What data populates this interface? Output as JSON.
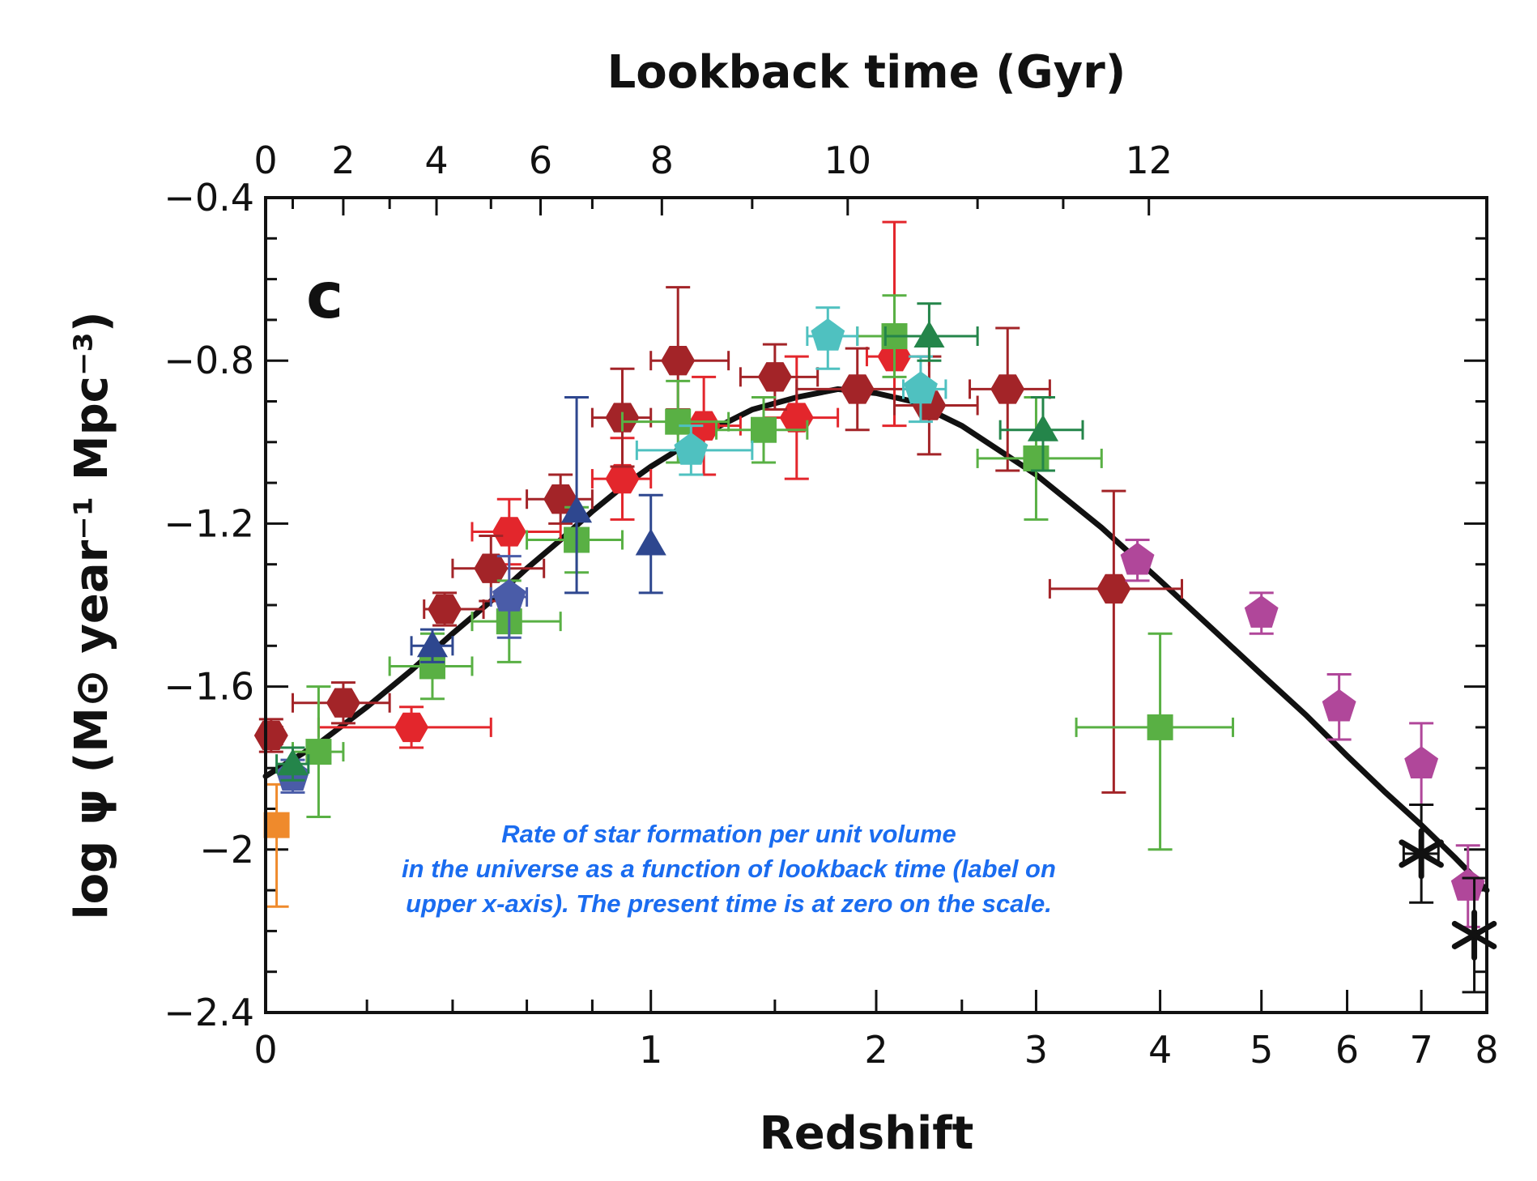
{
  "chart_data": {
    "type": "scatter",
    "panel_label": "c",
    "xlabel": "Redshift",
    "ylabel": "log ψ (M⊙ year⁻¹ Mpc⁻³)",
    "top_xlabel": "Lookback time (Gyr)",
    "x_scale": "log(1+z)",
    "xlim": [
      0,
      8
    ],
    "ylim": [
      -2.4,
      -0.4
    ],
    "x_ticks": [
      "0",
      "1",
      "2",
      "3",
      "4",
      "5",
      "6",
      "7",
      "8"
    ],
    "y_ticks": [
      "−0.4",
      "−0.8",
      "−1.2",
      "−1.6",
      "−2",
      "−2.4"
    ],
    "top_x_ticks": [
      {
        "label": "0",
        "z": 0
      },
      {
        "label": "2",
        "z": 0.15
      },
      {
        "label": "4",
        "z": 0.36
      },
      {
        "label": "6",
        "z": 0.64
      },
      {
        "label": "8",
        "z": 1.04
      },
      {
        "label": "10",
        "z": 1.85
      },
      {
        "label": "12",
        "z": 3.9
      }
    ],
    "annotation": [
      "Rate of star formation per unit volume",
      "in the universe as a function of lookback time (label on",
      "upper x-axis).  The present time is at zero on the scale."
    ],
    "fit_curve": {
      "color": "#111111",
      "points": [
        [
          0,
          -1.82
        ],
        [
          0.1,
          -1.74
        ],
        [
          0.2,
          -1.65
        ],
        [
          0.3,
          -1.56
        ],
        [
          0.4,
          -1.47
        ],
        [
          0.5,
          -1.39
        ],
        [
          0.6,
          -1.31
        ],
        [
          0.7,
          -1.24
        ],
        [
          0.8,
          -1.17
        ],
        [
          0.9,
          -1.11
        ],
        [
          1.0,
          -1.06
        ],
        [
          1.2,
          -0.98
        ],
        [
          1.4,
          -0.92
        ],
        [
          1.6,
          -0.89
        ],
        [
          1.8,
          -0.87
        ],
        [
          2.0,
          -0.88
        ],
        [
          2.2,
          -0.9
        ],
        [
          2.5,
          -0.96
        ],
        [
          3.0,
          -1.08
        ],
        [
          3.5,
          -1.21
        ],
        [
          4.0,
          -1.34
        ],
        [
          4.5,
          -1.46
        ],
        [
          5.0,
          -1.57
        ],
        [
          5.5,
          -1.67
        ],
        [
          6.0,
          -1.77
        ],
        [
          6.5,
          -1.86
        ],
        [
          7.0,
          -1.94
        ],
        [
          7.5,
          -2.02
        ],
        [
          8.0,
          -2.1
        ]
      ]
    },
    "series": [
      {
        "marker": "hexagon",
        "color": "#e3262c",
        "points": [
          {
            "z": 0.3,
            "y": -1.7,
            "xerr": [
              0.2,
              0.2
            ],
            "yerr": [
              0.05,
              0.05
            ]
          },
          {
            "z": 0.55,
            "y": -1.22,
            "xerr": [
              0.1,
              0.15
            ],
            "yerr": [
              0.08,
              0.08
            ]
          },
          {
            "z": 0.9,
            "y": -1.09,
            "xerr": [
              0.1,
              0.1
            ],
            "yerr": [
              0.1,
              0.1
            ]
          },
          {
            "z": 1.2,
            "y": -0.96,
            "xerr": [
              0.1,
              0.15
            ],
            "yerr": [
              0.12,
              0.12
            ]
          },
          {
            "z": 1.6,
            "y": -0.94,
            "xerr": [
              0.15,
              0.2
            ],
            "yerr": [
              0.15,
              0.15
            ]
          },
          {
            "z": 2.1,
            "y": -0.79,
            "xerr": [
              0.15,
              0.2
            ],
            "yerr": [
              0.17,
              0.33
            ]
          }
        ]
      },
      {
        "marker": "hexagon",
        "color": "#a32428",
        "points": [
          {
            "z": 0.01,
            "y": -1.72,
            "xerr": [
              0.01,
              0.02
            ],
            "yerr": [
              0.04,
              0.04
            ]
          },
          {
            "z": 0.15,
            "y": -1.64,
            "xerr": [
              0.1,
              0.1
            ],
            "yerr": [
              0.05,
              0.05
            ]
          },
          {
            "z": 0.38,
            "y": -1.41,
            "xerr": [
              0.05,
              0.1
            ],
            "yerr": [
              0.04,
              0.04
            ]
          },
          {
            "z": 0.5,
            "y": -1.31,
            "xerr": [
              0.1,
              0.15
            ],
            "yerr": [
              0.08,
              0.08
            ]
          },
          {
            "z": 0.7,
            "y": -1.14,
            "xerr": [
              0.1,
              0.1
            ],
            "yerr": [
              0.06,
              0.06
            ]
          },
          {
            "z": 0.9,
            "y": -0.94,
            "xerr": [
              0.1,
              0.1
            ],
            "yerr": [
              0.12,
              0.12
            ]
          },
          {
            "z": 1.1,
            "y": -0.8,
            "xerr": [
              0.1,
              0.2
            ],
            "yerr": [
              0.12,
              0.18
            ]
          },
          {
            "z": 1.5,
            "y": -0.84,
            "xerr": [
              0.15,
              0.2
            ],
            "yerr": [
              0.08,
              0.08
            ]
          },
          {
            "z": 1.9,
            "y": -0.87,
            "xerr": [
              0.3,
              0.4
            ],
            "yerr": [
              0.1,
              0.1
            ]
          },
          {
            "z": 2.3,
            "y": -0.91,
            "xerr": [
              0.2,
              0.3
            ],
            "yerr": [
              0.12,
              0.12
            ]
          },
          {
            "z": 2.8,
            "y": -0.87,
            "xerr": [
              0.25,
              0.3
            ],
            "yerr": [
              0.2,
              0.15
            ]
          },
          {
            "z": 3.6,
            "y": -1.36,
            "xerr": [
              0.5,
              0.6
            ],
            "yerr": [
              0.5,
              0.24
            ]
          }
        ]
      },
      {
        "marker": "square",
        "color": "#59b044",
        "points": [
          {
            "z": 0.1,
            "y": -1.76,
            "xerr": [
              0.05,
              0.05
            ],
            "yerr": [
              0.16,
              0.16
            ]
          },
          {
            "z": 0.35,
            "y": -1.55,
            "xerr": [
              0.1,
              0.1
            ],
            "yerr": [
              0.08,
              0.08
            ]
          },
          {
            "z": 0.55,
            "y": -1.44,
            "xerr": [
              0.1,
              0.15
            ],
            "yerr": [
              0.1,
              0.1
            ]
          },
          {
            "z": 0.75,
            "y": -1.24,
            "xerr": [
              0.15,
              0.15
            ],
            "yerr": [
              0.08,
              0.08
            ]
          },
          {
            "z": 1.1,
            "y": -0.95,
            "xerr": [
              0.2,
              0.2
            ],
            "yerr": [
              0.1,
              0.1
            ]
          },
          {
            "z": 1.45,
            "y": -0.97,
            "xerr": [
              0.2,
              0.2
            ],
            "yerr": [
              0.08,
              0.08
            ]
          },
          {
            "z": 2.1,
            "y": -0.74,
            "xerr": [
              0.2,
              0.2
            ],
            "yerr": [
              0.1,
              0.1
            ]
          },
          {
            "z": 3.0,
            "y": -1.04,
            "xerr": [
              0.4,
              0.5
            ],
            "yerr": [
              0.15,
              0.15
            ]
          },
          {
            "z": 4.0,
            "y": -1.7,
            "xerr": [
              0.7,
              0.7
            ],
            "yerr": [
              0.3,
              0.23
            ]
          }
        ]
      },
      {
        "marker": "square",
        "color": "#ef8a2c",
        "points": [
          {
            "z": 0.02,
            "y": -1.94,
            "xerr": [
              0,
              0
            ],
            "yerr": [
              0.2,
              0.1
            ]
          }
        ]
      },
      {
        "marker": "pentagon",
        "color": "#4fc1c0",
        "points": [
          {
            "z": 1.15,
            "y": -1.02,
            "xerr": [
              0.2,
              0.25
            ],
            "yerr": [
              0.06,
              0.06
            ]
          },
          {
            "z": 1.75,
            "y": -0.74,
            "xerr": [
              0.1,
              0.15
            ],
            "yerr": [
              0.08,
              0.07
            ]
          },
          {
            "z": 2.25,
            "y": -0.87,
            "xerr": [
              0.1,
              0.15
            ],
            "yerr": [
              0.08,
              0.08
            ]
          }
        ]
      },
      {
        "marker": "pentagon",
        "color": "#4a5ca8",
        "points": [
          {
            "z": 0.05,
            "y": -1.82,
            "xerr": [
              0.02,
              0.02
            ],
            "yerr": [
              0.04,
              0.04
            ]
          },
          {
            "z": 0.55,
            "y": -1.38,
            "xerr": [
              0.05,
              0.05
            ],
            "yerr": [
              0.1,
              0.1
            ]
          }
        ]
      },
      {
        "marker": "pentagon",
        "color": "#b0479a",
        "points": [
          {
            "z": 3.8,
            "y": -1.29,
            "xerr": [
              0,
              0
            ],
            "yerr": [
              0.05,
              0.05
            ]
          },
          {
            "z": 5.0,
            "y": -1.42,
            "xerr": [
              0,
              0
            ],
            "yerr": [
              0.05,
              0.05
            ]
          },
          {
            "z": 5.9,
            "y": -1.65,
            "xerr": [
              0,
              0
            ],
            "yerr": [
              0.08,
              0.08
            ]
          },
          {
            "z": 7.0,
            "y": -1.79,
            "xerr": [
              0,
              0
            ],
            "yerr": [
              0.1,
              0.1
            ]
          },
          {
            "z": 7.7,
            "y": -2.09,
            "xerr": [
              0,
              0
            ],
            "yerr": [
              0.1,
              0.1
            ]
          }
        ]
      },
      {
        "marker": "triangle",
        "color": "#2e478f",
        "points": [
          {
            "z": 0.35,
            "y": -1.5,
            "xerr": [
              0.05,
              0.05
            ],
            "yerr": [
              0.04,
              0.04
            ]
          },
          {
            "z": 0.75,
            "y": -1.17,
            "xerr": [
              0,
              0
            ],
            "yerr": [
              0.2,
              0.28
            ]
          },
          {
            "z": 1.0,
            "y": -1.25,
            "xerr": [
              0,
              0
            ],
            "yerr": [
              0.12,
              0.12
            ]
          }
        ]
      },
      {
        "marker": "triangle",
        "color": "#24854a",
        "points": [
          {
            "z": 0.05,
            "y": -1.79,
            "xerr": [
              0.03,
              0.03
            ],
            "yerr": [
              0.04,
              0.04
            ]
          },
          {
            "z": 2.3,
            "y": -0.74,
            "xerr": [
              0.25,
              0.3
            ],
            "yerr": [
              0.06,
              0.08
            ]
          },
          {
            "z": 3.05,
            "y": -0.97,
            "xerr": [
              0.3,
              0.3
            ],
            "yerr": [
              0.1,
              0.08
            ]
          }
        ]
      },
      {
        "marker": "star",
        "color": "#111111",
        "points": [
          {
            "z": 7.0,
            "y": -2.01,
            "xerr": [
              0.25,
              0.25
            ],
            "yerr": [
              0.12,
              0.12
            ]
          },
          {
            "z": 7.8,
            "y": -2.21,
            "xerr": [
              0,
              0
            ],
            "yerr": [
              0.14,
              0.14
            ]
          }
        ]
      }
    ]
  }
}
